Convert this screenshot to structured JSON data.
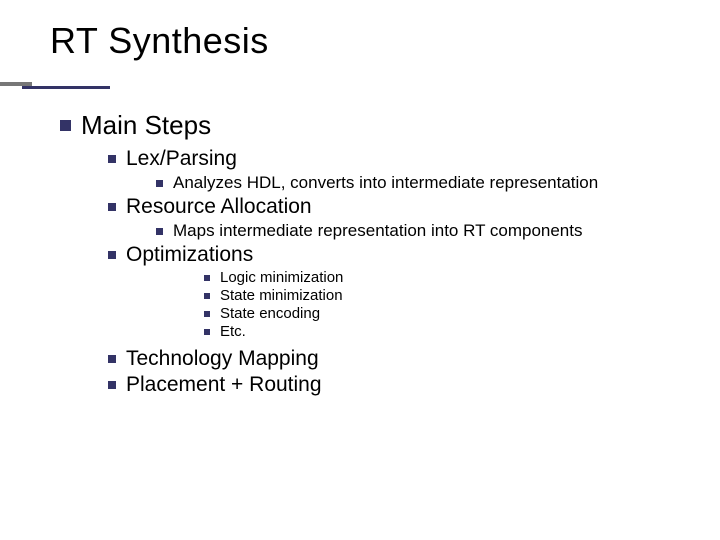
{
  "title": "RT Synthesis",
  "bullets": [
    {
      "level": 1,
      "text": "Main Steps"
    },
    {
      "level": 2,
      "text": "Lex/Parsing"
    },
    {
      "level": 3,
      "text": "Analyzes HDL, converts into intermediate representation"
    },
    {
      "level": 2,
      "text": "Resource Allocation"
    },
    {
      "level": 3,
      "text": "Maps intermediate representation into RT components"
    },
    {
      "level": 2,
      "text": "Optimizations"
    },
    {
      "level": 4,
      "text": "Logic minimization"
    },
    {
      "level": 4,
      "text": "State minimization"
    },
    {
      "level": 4,
      "text": "State encoding"
    },
    {
      "level": 4,
      "text": "Etc."
    },
    {
      "level": 2,
      "text": "Technology Mapping"
    },
    {
      "level": 2,
      "text": "Placement + Routing"
    }
  ],
  "colors": {
    "bullet_square": "#333366",
    "title_text": "#000000",
    "body_text": "#000000",
    "background": "#ffffff"
  },
  "fontsizes": {
    "title": 36,
    "lvl1": 26,
    "lvl2": 21,
    "lvl3": 17,
    "lvl4": 15
  }
}
